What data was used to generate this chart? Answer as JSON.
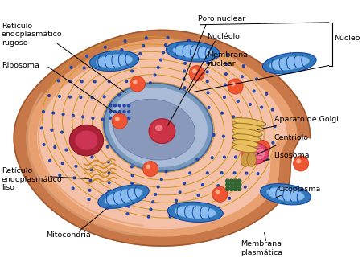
{
  "fig_width": 4.5,
  "fig_height": 3.31,
  "dpi": 100,
  "background": "#ffffff",
  "labels": {
    "reticulo_rugoso": "Retículo\nendoplasmático\nrugoso",
    "ribosoma": "Ribosoma",
    "poro_nuclear": "Poro nuclear",
    "nucleolo": "Nucléolo",
    "membrana_nuclear": "Membrana\nnuclear",
    "nucleo": "Núcleo",
    "aparato_golgi": "Aparato de Golgi",
    "centriolo": "Centriolo",
    "lisosoma": "Lisosoma",
    "reticulo_liso": "Retículo\nendoplasmático\nliso",
    "mitocondria": "Mitocondria",
    "citoplasma": "Citoplasma",
    "membrana_plasmatica": "Membrana\nplasmática"
  },
  "cell_outer": "#d4956a",
  "cell_wall": "#e8a878",
  "cytoplasm": "#f2b8a0",
  "mito_outer": "#3377bb",
  "mito_inner": "#5599dd",
  "er_rough_color": "#ddaa33",
  "er_rough_dots": "#3355aa",
  "nucleus_blue": "#7799cc",
  "nucleus_light": "#aabbdd",
  "nucleolus": "#cc3344",
  "golgi_color": "#ddaa33",
  "smooth_er": "#ddaa33",
  "lysosome": "#cc3344",
  "pink_vesicle": "#ee7766",
  "green_dots": "#336633"
}
